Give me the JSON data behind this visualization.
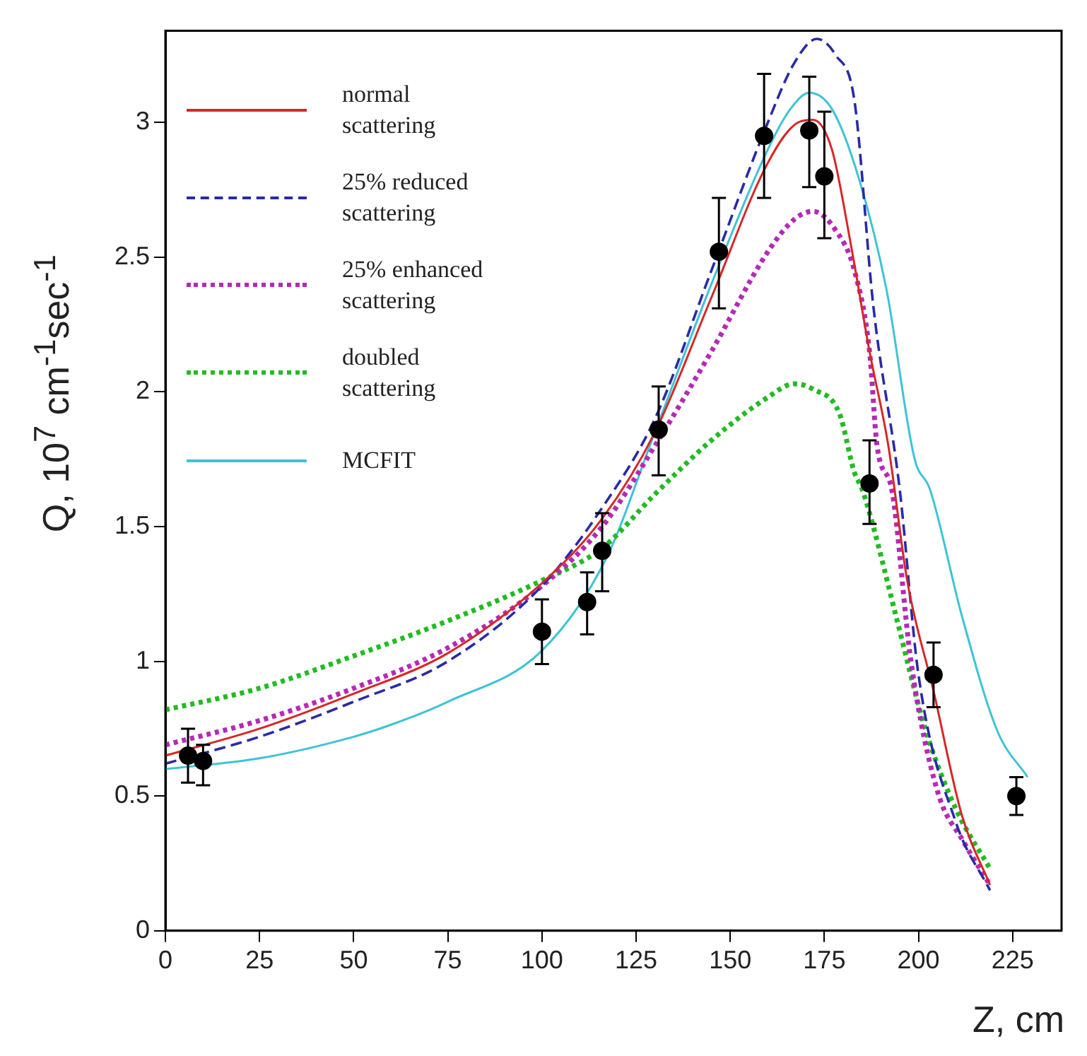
{
  "chart_data": {
    "type": "line",
    "xlabel": "Z, cm",
    "ylabel": "Q, 10$^{7}$ cm$^{-1}$sec$^{-1}$",
    "xlim": [
      0,
      238
    ],
    "ylim": [
      0,
      3.34
    ],
    "xticks": [
      0,
      25,
      50,
      75,
      100,
      125,
      150,
      175,
      200,
      225
    ],
    "yticks": [
      0,
      0.5,
      1,
      1.5,
      2,
      2.5,
      3
    ],
    "grid": false,
    "legend": "top left",
    "series": [
      {
        "name": "normal scattering",
        "color": "#d62728",
        "line_style": "solid",
        "x": [
          0,
          25,
          50,
          75,
          100,
          116,
          130,
          145,
          160,
          168,
          172,
          177,
          182,
          187,
          192,
          197,
          204,
          211.5,
          219
        ],
        "values": [
          0.65,
          0.75,
          0.88,
          1.03,
          1.29,
          1.53,
          1.85,
          2.35,
          2.85,
          3.0,
          3.01,
          2.9,
          2.55,
          2.15,
          1.8,
          1.3,
          0.89,
          0.43,
          0.17
        ]
      },
      {
        "name": "25% reduced scattering",
        "color": "#2a2aa8",
        "line_style": "dashed",
        "x": [
          0,
          25,
          50,
          75,
          100,
          116,
          130,
          145,
          160,
          167,
          173,
          178,
          183,
          188,
          195,
          200,
          210,
          219
        ],
        "values": [
          0.62,
          0.72,
          0.85,
          1.0,
          1.28,
          1.57,
          1.9,
          2.45,
          3.0,
          3.22,
          3.31,
          3.25,
          3.08,
          2.32,
          1.64,
          0.95,
          0.4,
          0.15
        ]
      },
      {
        "name": "25% enhanced scattering",
        "color": "#b52ab5",
        "line_style": "dotted",
        "x": [
          0,
          25,
          50,
          75,
          100,
          116,
          130,
          145,
          160,
          167,
          172,
          178,
          183,
          187,
          189,
          193,
          198,
          205,
          212,
          219
        ],
        "values": [
          0.69,
          0.78,
          0.9,
          1.05,
          1.28,
          1.5,
          1.8,
          2.15,
          2.52,
          2.64,
          2.67,
          2.6,
          2.45,
          2.15,
          1.8,
          1.63,
          1.0,
          0.52,
          0.33,
          0.17
        ]
      },
      {
        "name": "doubled scattering",
        "color": "#22bb22",
        "line_style": "dotted",
        "x": [
          0,
          25,
          50,
          75,
          100,
          116,
          130,
          145,
          160,
          167,
          172,
          179,
          183,
          185,
          188,
          194,
          202,
          210,
          219
        ],
        "values": [
          0.82,
          0.9,
          1.02,
          1.15,
          1.3,
          1.42,
          1.62,
          1.82,
          1.98,
          2.03,
          2.01,
          1.92,
          1.7,
          1.64,
          1.5,
          1.17,
          0.74,
          0.45,
          0.23
        ]
      },
      {
        "name": "MCFIT",
        "color": "#3ec3d6",
        "line_style": "solid",
        "x": [
          0,
          25,
          50,
          61,
          75,
          100,
          117,
          130,
          145,
          160,
          166,
          171,
          177,
          184,
          191.5,
          199,
          203,
          211.5,
          221,
          229
        ],
        "values": [
          0.6,
          0.64,
          0.72,
          0.77,
          0.85,
          1.04,
          1.38,
          1.85,
          2.4,
          2.9,
          3.05,
          3.11,
          3.05,
          2.8,
          2.38,
          1.75,
          1.64,
          1.17,
          0.74,
          0.57
        ]
      },
      {
        "type": "scatter",
        "color": "#000000",
        "marker": "circle",
        "x": [
          6,
          10,
          100,
          112,
          116,
          131,
          147,
          159,
          171,
          175,
          187,
          204,
          226
        ],
        "values": [
          0.65,
          0.63,
          1.11,
          1.22,
          1.41,
          1.86,
          2.52,
          2.95,
          2.97,
          2.8,
          1.66,
          0.95,
          0.5
        ],
        "errors": [
          [
            0.55,
            0.75
          ],
          [
            0.54,
            0.69
          ],
          [
            0.99,
            1.23
          ],
          [
            1.1,
            1.33
          ],
          [
            1.26,
            1.55
          ],
          [
            1.69,
            2.02
          ],
          [
            2.31,
            2.72
          ],
          [
            2.72,
            3.18
          ],
          [
            2.76,
            3.17
          ],
          [
            2.57,
            3.04
          ],
          [
            1.51,
            1.82
          ],
          [
            0.83,
            1.07
          ],
          [
            0.43,
            0.57
          ]
        ]
      }
    ]
  }
}
